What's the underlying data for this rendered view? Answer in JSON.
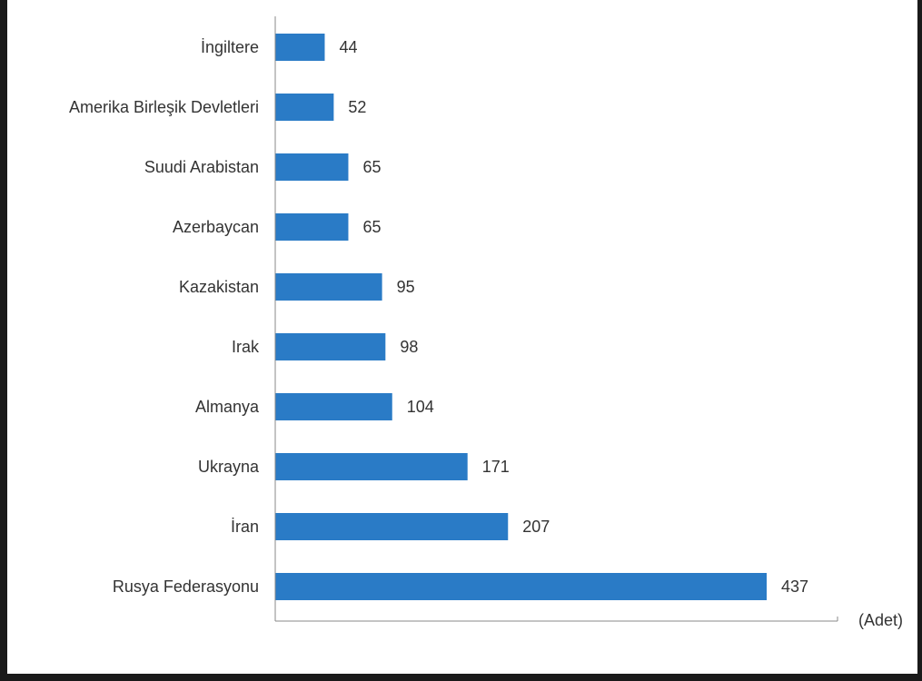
{
  "chart_data": {
    "type": "hbar",
    "categories": [
      "İngiltere",
      "Amerika Birleşik Devletleri",
      "Suudi Arabistan",
      "Azerbaycan",
      "Kazakistan",
      "Irak",
      "Almanya",
      "Ukrayna",
      "İran",
      "Rusya Federasyonu"
    ],
    "values": [
      44,
      52,
      65,
      65,
      95,
      98,
      104,
      171,
      207,
      437
    ],
    "color": "#2a7bc6",
    "xlim": [
      0,
      500
    ],
    "x_label": "(Adet)"
  }
}
